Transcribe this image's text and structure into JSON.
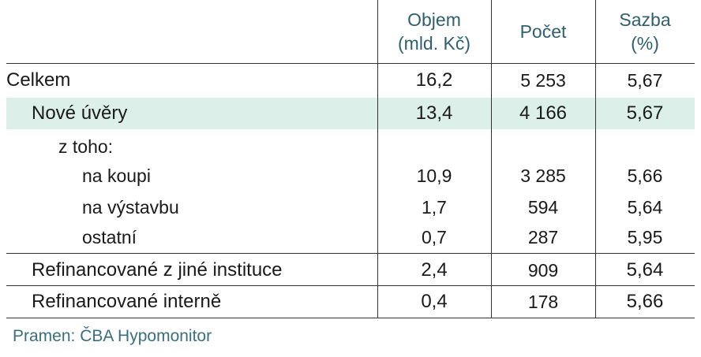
{
  "table": {
    "headers": {
      "objem_line1": "Objem",
      "objem_line2": "(mld. Kč)",
      "pocet": "Počet",
      "sazba_line1": "Sazba",
      "sazba_line2": "(%)"
    },
    "rows": [
      {
        "label": "Celkem",
        "objem": "16,2",
        "pocet": "5 253",
        "sazba": "5,67"
      },
      {
        "label": "Nové úvěry",
        "objem": "13,4",
        "pocet": "4 166",
        "sazba": "5,67"
      },
      {
        "label": "z toho:",
        "objem": "",
        "pocet": "",
        "sazba": ""
      },
      {
        "label": "na koupi",
        "objem": "10,9",
        "pocet": "3 285",
        "sazba": "5,66"
      },
      {
        "label": "na výstavbu",
        "objem": "1,7",
        "pocet": "594",
        "sazba": "5,64"
      },
      {
        "label": "ostatní",
        "objem": "0,7",
        "pocet": "287",
        "sazba": "5,95"
      },
      {
        "label": "Refinancované z jiné instituce",
        "objem": "2,4",
        "pocet": "909",
        "sazba": "5,64"
      },
      {
        "label": "Refinancované interně",
        "objem": "0,4",
        "pocet": "178",
        "sazba": "5,66"
      }
    ]
  },
  "source": "Pramen: ČBA Hypomonitor",
  "colors": {
    "header_text": "#2f5f6e",
    "highlight_row": "#dcefe8",
    "source_text": "#3a6f80"
  }
}
